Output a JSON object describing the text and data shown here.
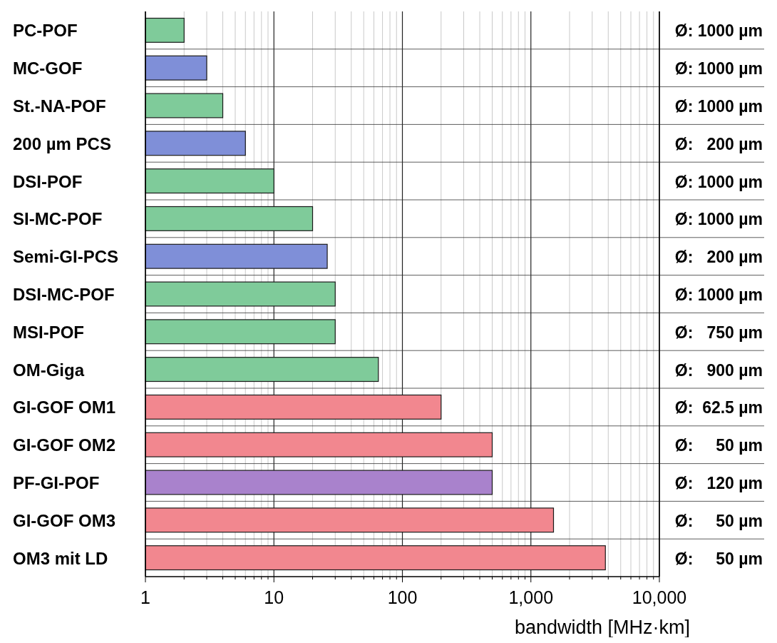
{
  "chart_data": {
    "type": "bar",
    "orientation": "horizontal",
    "log": "x",
    "xlabel": "bandwidth [MHz·km]",
    "categories": [
      "PC-POF",
      "MC-GOF",
      "St.-NA-POF",
      "200 µm PCS",
      "DSI-POF",
      "SI-MC-POF",
      "Semi-GI-PCS",
      "DSI-MC-POF",
      "MSI-POF",
      "OM-Giga",
      "GI-GOF OM1",
      "GI-GOF OM2",
      "PF-GI-POF",
      "GI-GOF OM3",
      "OM3 mit LD"
    ],
    "values": [
      2,
      3,
      4,
      6,
      10,
      20,
      26,
      30,
      30,
      65,
      200,
      500,
      500,
      1500,
      3800
    ],
    "colors": [
      "#7fcb9a",
      "#7f8fd8",
      "#7fcb9a",
      "#7f8fd8",
      "#7fcb9a",
      "#7fcb9a",
      "#7f8fd8",
      "#7fcb9a",
      "#7fcb9a",
      "#7fcb9a",
      "#f2878f",
      "#f2878f",
      "#a982cc",
      "#f2878f",
      "#f2878f"
    ],
    "annotations": [
      "Ø: 1000 µm",
      "Ø: 1000 µm",
      "Ø: 1000 µm",
      "Ø:   200 µm",
      "Ø: 1000 µm",
      "Ø: 1000 µm",
      "Ø:   200 µm",
      "Ø: 1000 µm",
      "Ø:   750 µm",
      "Ø:   900 µm",
      "Ø:  62.5 µm",
      "Ø:     50 µm",
      "Ø:   120 µm",
      "Ø:     50 µm",
      "Ø:     50 µm"
    ],
    "xlim": [
      1,
      10000
    ],
    "xticks": [
      1,
      {
        "value": 2,
        "label": null
      },
      {
        "value": 3,
        "label": null
      },
      {
        "value": 4,
        "label": null
      },
      {
        "value": 5,
        "label": null
      },
      {
        "value": 6,
        "label": null
      },
      {
        "value": 7,
        "label": null
      },
      {
        "value": 8,
        "label": null
      },
      {
        "value": 9,
        "label": null
      },
      10,
      {
        "value": 20,
        "label": null
      },
      {
        "value": 30,
        "label": null
      },
      {
        "value": 40,
        "label": null
      },
      {
        "value": 50,
        "label": null
      },
      {
        "value": 60,
        "label": null
      },
      {
        "value": 70,
        "label": null
      },
      {
        "value": 80,
        "label": null
      },
      {
        "value": 90,
        "label": null
      },
      100,
      {
        "value": 200,
        "label": null
      },
      {
        "value": 300,
        "label": null
      },
      {
        "value": 400,
        "label": null
      },
      {
        "value": 500,
        "label": null
      },
      {
        "value": 600,
        "label": null
      },
      {
        "value": 700,
        "label": null
      },
      {
        "value": 800,
        "label": null
      },
      {
        "value": 900,
        "label": null
      },
      {
        "value": 1000,
        "label": "1,000"
      },
      {
        "value": 2000,
        "label": null
      },
      {
        "value": 3000,
        "label": null
      },
      {
        "value": 4000,
        "label": null
      },
      {
        "value": 5000,
        "label": null
      },
      {
        "value": 6000,
        "label": null
      },
      {
        "value": 7000,
        "label": null
      },
      {
        "value": 8000,
        "label": null
      },
      {
        "value": 9000,
        "label": null
      },
      {
        "value": 10000,
        "label": "10,000"
      }
    ],
    "grid": true
  }
}
